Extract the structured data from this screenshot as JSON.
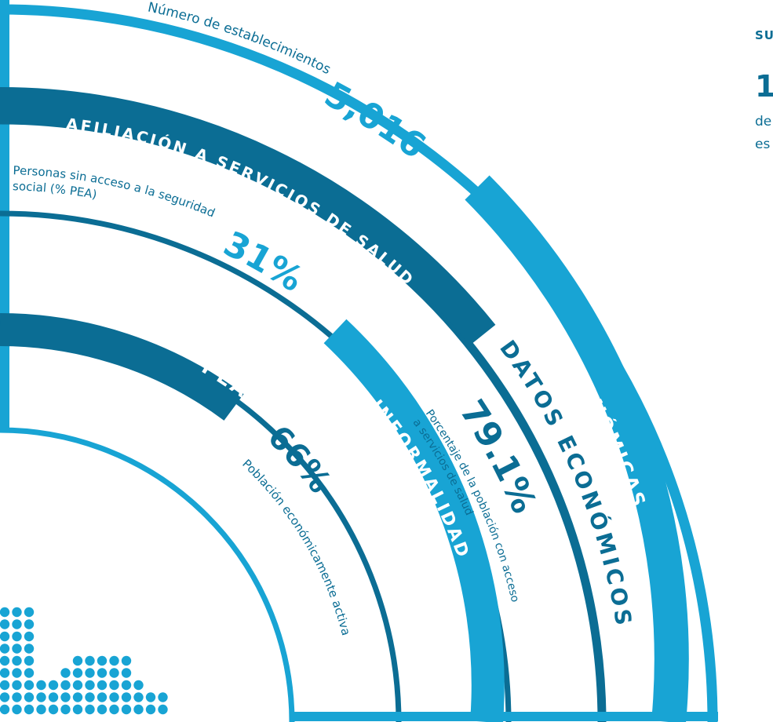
{
  "side": {
    "heading": "SU",
    "value": "1",
    "line1": "de",
    "line2": "es"
  },
  "title": "DATOS ECONÓMICOS",
  "rings": {
    "unidades": {
      "label": "UNIDADES ECONÓMICAS",
      "value": "5,016",
      "desc": "Número de establecimientos"
    },
    "afiliacion": {
      "label": "AFILIACIÓN A SERVICIOS DE SALUD",
      "value": "79.1%",
      "desc1": "Porcentaje de la población con acceso",
      "desc2": "a servicios de salud"
    },
    "informalidad": {
      "label": "INFORMALIDAD",
      "value": "31%",
      "desc1": "Personas sin acceso a la seguridad",
      "desc2": "social  (% PEA)"
    },
    "pea": {
      "label": "PEA",
      "value": "66%",
      "desc": "Población económicamente activa"
    }
  },
  "colors": {
    "cyan": "#18a4d4",
    "dark": "#0b6d94",
    "text": "#0b6d94"
  }
}
